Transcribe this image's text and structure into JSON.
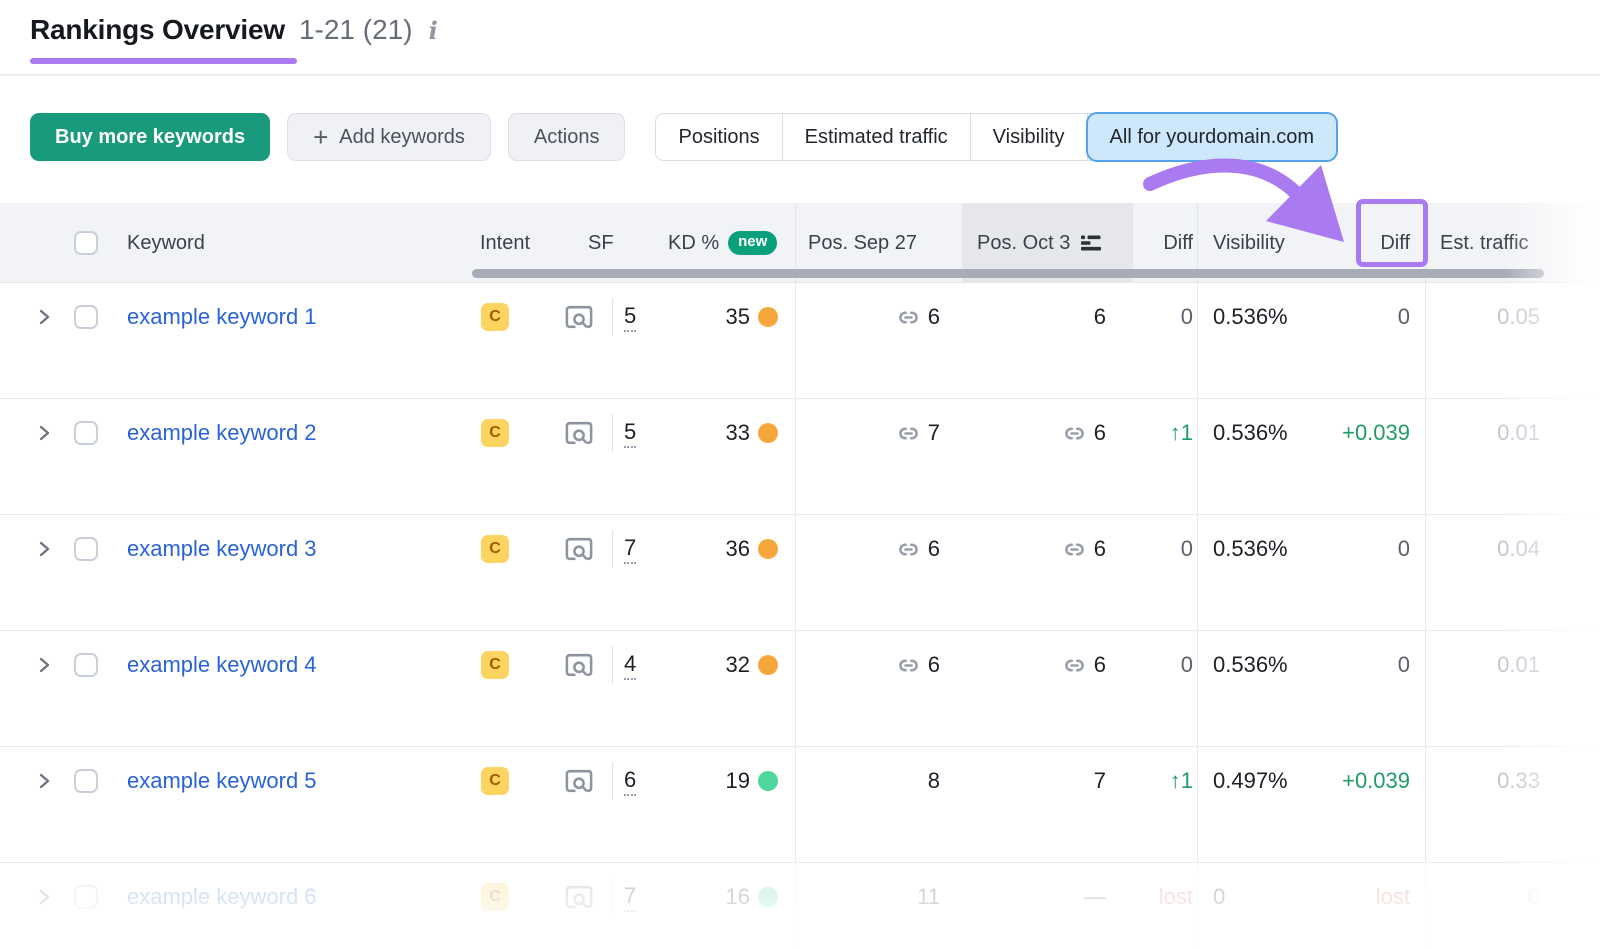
{
  "page": {
    "title": "Rankings Overview",
    "range": "1-21 (21)",
    "info_icon": "i"
  },
  "toolbar": {
    "buy_button": "Buy more keywords",
    "add_button": "Add keywords",
    "plus_icon": "+",
    "actions_button": "Actions",
    "view_tabs": [
      {
        "label": "Positions",
        "active": false
      },
      {
        "label": "Estimated traffic",
        "active": false
      },
      {
        "label": "Visibility",
        "active": false
      },
      {
        "label": "All for yourdomain.com",
        "active": true
      }
    ]
  },
  "table": {
    "headers": {
      "keyword": "Keyword",
      "intent": "Intent",
      "sf": "SF",
      "kd": "KD %",
      "kd_badge": "new",
      "pos_prev": "Pos. Sep 27",
      "pos_cur": "Pos. Oct 3",
      "diff1": "Diff",
      "visibility": "Visibility",
      "diff2": "Diff",
      "traffic": "Est. traffic"
    },
    "sorted_column": "Pos. Oct 3",
    "rows": [
      {
        "keyword": "example keyword 1",
        "intent": "C",
        "sf": "5",
        "kd": "35",
        "kd_level": "orange",
        "pos_prev": {
          "link": true,
          "value": "6"
        },
        "pos_cur": {
          "link": false,
          "value": "6"
        },
        "diff_pos": {
          "text": "0",
          "state": "zero"
        },
        "visibility": "0.536%",
        "diff_vis": {
          "text": "0",
          "state": "zero"
        },
        "est_traffic": "0.05",
        "faded": false
      },
      {
        "keyword": "example keyword 2",
        "intent": "C",
        "sf": "5",
        "kd": "33",
        "kd_level": "orange",
        "pos_prev": {
          "link": true,
          "value": "7"
        },
        "pos_cur": {
          "link": true,
          "value": "6"
        },
        "diff_pos": {
          "text": "↑1",
          "state": "up"
        },
        "visibility": "0.536%",
        "diff_vis": {
          "text": "+0.039",
          "state": "up"
        },
        "est_traffic": "0.01",
        "faded": false
      },
      {
        "keyword": "example keyword 3",
        "intent": "C",
        "sf": "7",
        "kd": "36",
        "kd_level": "orange",
        "pos_prev": {
          "link": true,
          "value": "6"
        },
        "pos_cur": {
          "link": true,
          "value": "6"
        },
        "diff_pos": {
          "text": "0",
          "state": "zero"
        },
        "visibility": "0.536%",
        "diff_vis": {
          "text": "0",
          "state": "zero"
        },
        "est_traffic": "0.04",
        "faded": false
      },
      {
        "keyword": "example keyword 4",
        "intent": "C",
        "sf": "4",
        "kd": "32",
        "kd_level": "orange",
        "pos_prev": {
          "link": true,
          "value": "6"
        },
        "pos_cur": {
          "link": true,
          "value": "6"
        },
        "diff_pos": {
          "text": "0",
          "state": "zero"
        },
        "visibility": "0.536%",
        "diff_vis": {
          "text": "0",
          "state": "zero"
        },
        "est_traffic": "0.01",
        "faded": false
      },
      {
        "keyword": "example keyword 5",
        "intent": "C",
        "sf": "6",
        "kd": "19",
        "kd_level": "green",
        "pos_prev": {
          "link": false,
          "value": "8"
        },
        "pos_cur": {
          "link": false,
          "value": "7"
        },
        "diff_pos": {
          "text": "↑1",
          "state": "up"
        },
        "visibility": "0.497%",
        "diff_vis": {
          "text": "+0.039",
          "state": "up"
        },
        "est_traffic": "0.33",
        "faded": false
      },
      {
        "keyword": "example keyword 6",
        "intent": "C",
        "sf": "7",
        "kd": "16",
        "kd_level": "green",
        "pos_prev": {
          "link": false,
          "value": "11"
        },
        "pos_cur": {
          "link": false,
          "value": "—"
        },
        "diff_pos": {
          "text": "lost",
          "state": "lost"
        },
        "visibility": "0",
        "diff_vis": {
          "text": "lost",
          "state": "lost"
        },
        "est_traffic": "0",
        "faded": true
      }
    ]
  },
  "colors": {
    "accent_purple": "#a97af0",
    "brand_green": "#1a9a7c",
    "active_tab_bg": "#cde8fb",
    "active_tab_border": "#54a3e6",
    "keyword_link_blue": "#2a63d8",
    "intent_badge_bg": "#fcd45f",
    "intent_badge_text": "#996000",
    "kd_dot_orange": "#f6a73c",
    "kd_dot_green": "#4fd69d",
    "diff_up_green": "#1f9d68",
    "diff_lost_red": "#df5f5f",
    "new_badge_green": "#0aa07c"
  }
}
